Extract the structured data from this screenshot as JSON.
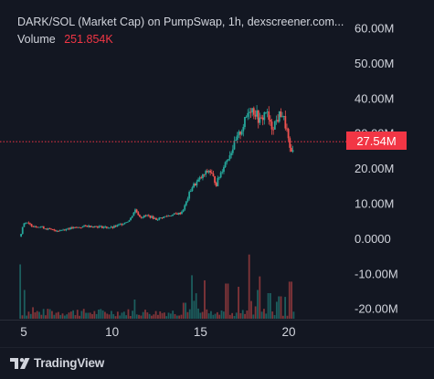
{
  "header": {
    "title": "DARK/SOL (Market Cap) on PumpSwap, 1h, dexscreener.com...",
    "volume_label": "Volume",
    "volume_value": "251.854K"
  },
  "last_price_label": "27.54M",
  "branding": {
    "name": "TradingView",
    "icon": "tradingview-logo-icon"
  },
  "colors": {
    "up": "#26a69a",
    "down": "#ef5350",
    "last_price": "#f23645",
    "background": "#131722",
    "text": "#d1d4dc"
  },
  "chart_data": {
    "type": "candlestick",
    "x_ticks": [
      "5",
      "10",
      "15",
      "20"
    ],
    "y_ticks": [
      "60.00M",
      "50.00M",
      "40.00M",
      "30.00M",
      "20.00M",
      "10.00M",
      "0.0000",
      "-10.00M",
      "-20.00M"
    ],
    "y_tick_values": [
      60,
      50,
      40,
      30,
      20,
      10,
      0,
      -10,
      -20
    ],
    "y_unit": "M",
    "ylim": [
      -22,
      64
    ],
    "xlim": [
      4.6,
      23.2
    ],
    "last_price": 27.54,
    "close_series": [
      {
        "day": 4.8,
        "mc": 0.5
      },
      {
        "day": 5.0,
        "mc": 4.6
      },
      {
        "day": 5.5,
        "mc": 3.6
      },
      {
        "day": 6.0,
        "mc": 3.2
      },
      {
        "day": 6.5,
        "mc": 2.4
      },
      {
        "day": 7.0,
        "mc": 2.2
      },
      {
        "day": 7.5,
        "mc": 2.8
      },
      {
        "day": 8.0,
        "mc": 3.0
      },
      {
        "day": 8.5,
        "mc": 3.5
      },
      {
        "day": 9.0,
        "mc": 3.4
      },
      {
        "day": 9.5,
        "mc": 3.2
      },
      {
        "day": 10.0,
        "mc": 3.0
      },
      {
        "day": 10.5,
        "mc": 4.0
      },
      {
        "day": 11.0,
        "mc": 5.2
      },
      {
        "day": 11.3,
        "mc": 8.2
      },
      {
        "day": 11.6,
        "mc": 6.0
      },
      {
        "day": 12.0,
        "mc": 6.5
      },
      {
        "day": 12.5,
        "mc": 5.4
      },
      {
        "day": 13.0,
        "mc": 6.2
      },
      {
        "day": 13.5,
        "mc": 6.8
      },
      {
        "day": 13.9,
        "mc": 7.2
      },
      {
        "day": 14.1,
        "mc": 9.0
      },
      {
        "day": 14.5,
        "mc": 14.5
      },
      {
        "day": 15.0,
        "mc": 17.0
      },
      {
        "day": 15.5,
        "mc": 19.5
      },
      {
        "day": 15.9,
        "mc": 15.5
      },
      {
        "day": 16.3,
        "mc": 20.5
      },
      {
        "day": 16.7,
        "mc": 24.5
      },
      {
        "day": 17.1,
        "mc": 28.5
      },
      {
        "day": 17.5,
        "mc": 33.0
      },
      {
        "day": 17.8,
        "mc": 37.5
      },
      {
        "day": 18.1,
        "mc": 36.0
      },
      {
        "day": 18.4,
        "mc": 33.0
      },
      {
        "day": 18.7,
        "mc": 36.5
      },
      {
        "day": 19.0,
        "mc": 31.5
      },
      {
        "day": 19.3,
        "mc": 33.5
      },
      {
        "day": 19.6,
        "mc": 36.0
      },
      {
        "day": 19.9,
        "mc": 30.5
      },
      {
        "day": 20.1,
        "mc": 23.5
      },
      {
        "day": 20.3,
        "mc": 27.5
      }
    ],
    "volume_series": [
      {
        "day": 4.8,
        "height": 0.85
      },
      {
        "day": 5.0,
        "height": 0.45
      },
      {
        "day": 5.5,
        "height": 0.18
      },
      {
        "day": 6.5,
        "height": 0.15
      },
      {
        "day": 8.0,
        "height": 0.14
      },
      {
        "day": 9.0,
        "height": 0.12
      },
      {
        "day": 11.3,
        "height": 0.3
      },
      {
        "day": 12.5,
        "height": 0.12
      },
      {
        "day": 14.1,
        "height": 0.25
      },
      {
        "day": 14.5,
        "height": 0.68
      },
      {
        "day": 15.2,
        "height": 0.45
      },
      {
        "day": 16.5,
        "height": 0.55
      },
      {
        "day": 17.2,
        "height": 0.5
      },
      {
        "day": 17.8,
        "height": 0.72
      },
      {
        "day": 18.3,
        "height": 0.45
      },
      {
        "day": 18.9,
        "height": 0.4
      },
      {
        "day": 19.5,
        "height": 0.35
      },
      {
        "day": 20.1,
        "height": 0.58
      }
    ]
  }
}
